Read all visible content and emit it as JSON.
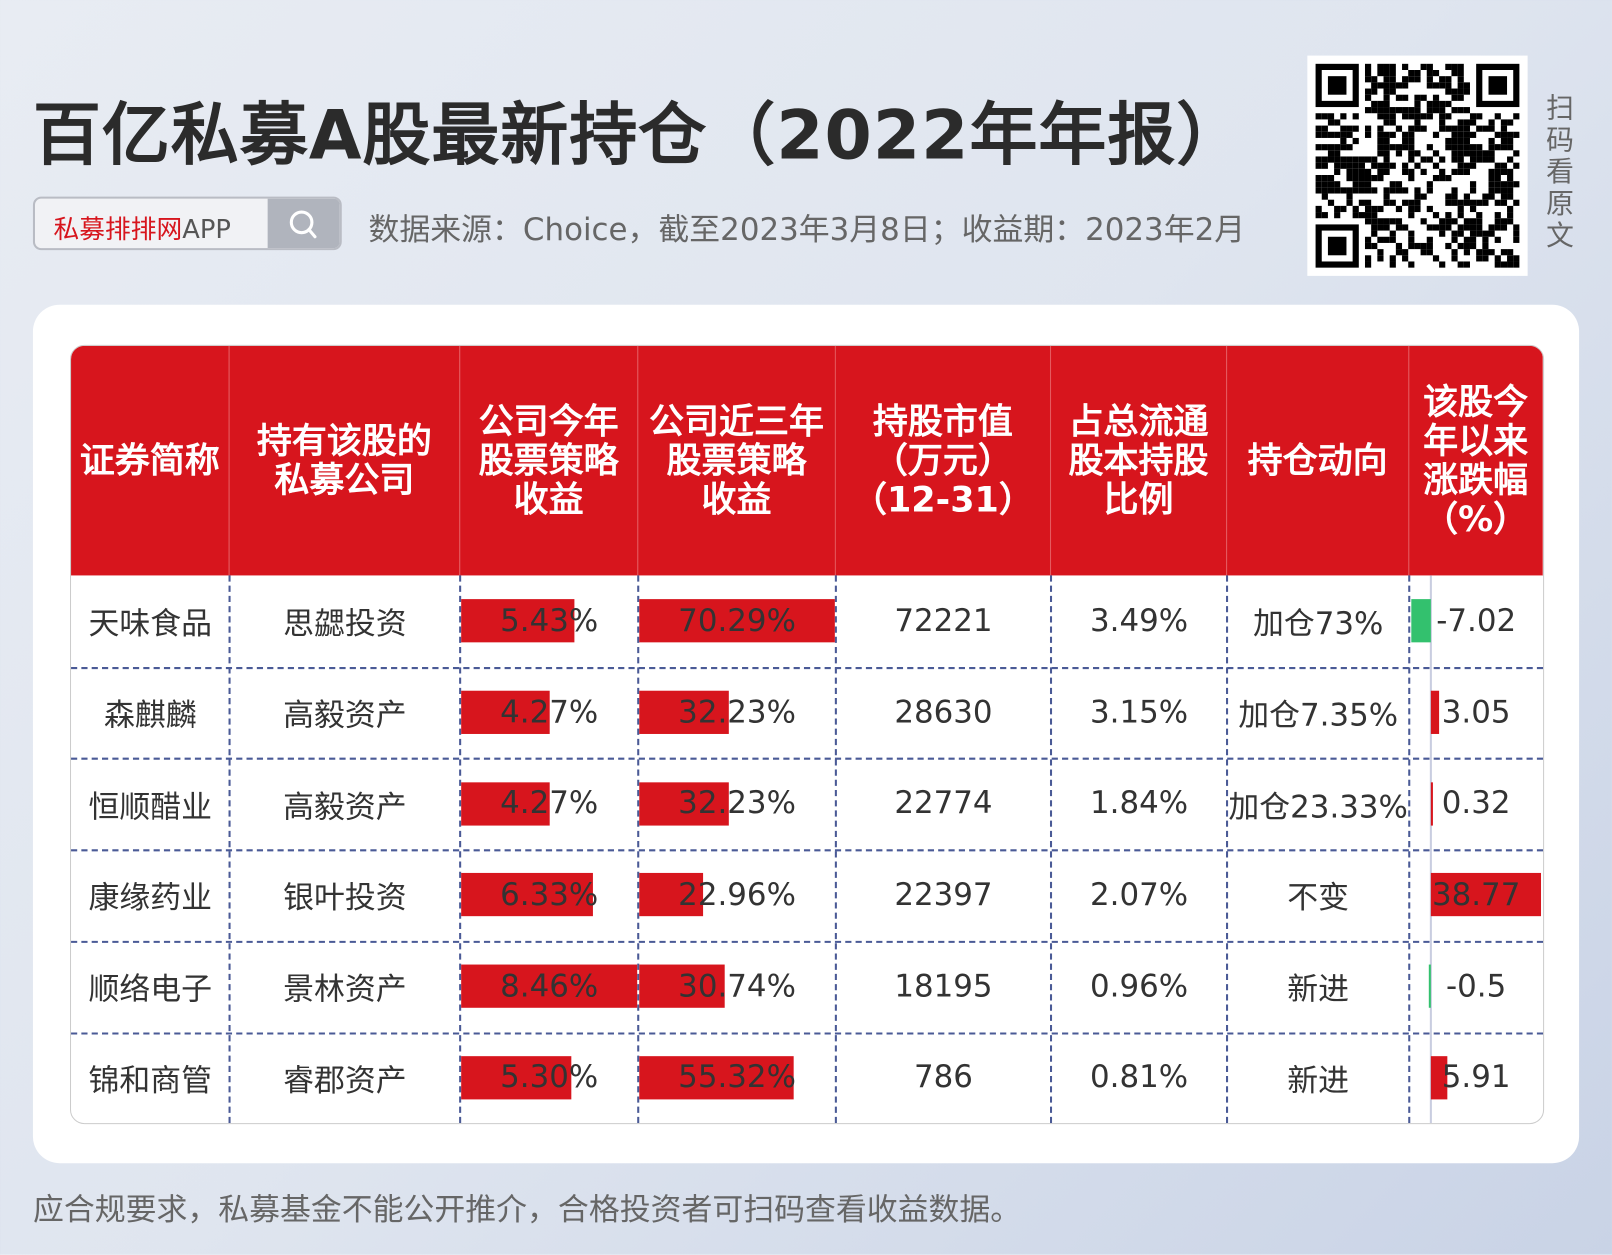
{
  "title": "百亿私募A股最新持仓（2022年年报）",
  "search": {
    "brand_red": "私募排排网",
    "brand_rest": "APP",
    "icon": "search-icon"
  },
  "source": "数据来源：Choice，截至2023年3月8日；收益期：2023年2月",
  "qr_label": "扫码看原文",
  "headers": [
    [
      "证券简称"
    ],
    [
      "持有该股的",
      "私募公司"
    ],
    [
      "公司今年",
      "股票策略",
      "收益"
    ],
    [
      "公司近三年",
      "股票策略",
      "收益"
    ],
    [
      "持股市值",
      "（万元）",
      "（12-31）"
    ],
    [
      "占总流通",
      "股本持股",
      "比例"
    ],
    [
      "持仓动向"
    ],
    [
      "该股今",
      "年以来",
      "涨跌幅",
      "（%）"
    ]
  ],
  "rows": [
    {
      "name": "天味食品",
      "company": "思勰投资",
      "ytd": "5.43%",
      "ytd_value": 5.43,
      "three_year": "70.29%",
      "three_year_value": 70.29,
      "market_value": "72221",
      "ratio": "3.49%",
      "action": "加仓73%",
      "change": "-7.02",
      "change_value": -7.02
    },
    {
      "name": "森麒麟",
      "company": "高毅资产",
      "ytd": "4.27%",
      "ytd_value": 4.27,
      "three_year": "32.23%",
      "three_year_value": 32.23,
      "market_value": "28630",
      "ratio": "3.15%",
      "action": "加仓7.35%",
      "change": "3.05",
      "change_value": 3.05
    },
    {
      "name": "恒顺醋业",
      "company": "高毅资产",
      "ytd": "4.27%",
      "ytd_value": 4.27,
      "three_year": "32.23%",
      "three_year_value": 32.23,
      "market_value": "22774",
      "ratio": "1.84%",
      "action": "加仓23.33%",
      "change": "0.32",
      "change_value": 0.32
    },
    {
      "name": "康缘药业",
      "company": "银叶投资",
      "ytd": "6.33%",
      "ytd_value": 6.33,
      "three_year": "22.96%",
      "three_year_value": 22.96,
      "market_value": "22397",
      "ratio": "2.07%",
      "action": "不变",
      "change": "38.77",
      "change_value": 38.77
    },
    {
      "name": "顺络电子",
      "company": "景林资产",
      "ytd": "8.46%",
      "ytd_value": 8.46,
      "three_year": "30.74%",
      "three_year_value": 30.74,
      "market_value": "18195",
      "ratio": "0.96%",
      "action": "新进",
      "change": "-0.5",
      "change_value": -0.5
    },
    {
      "name": "锦和商管",
      "company": "睿郡资产",
      "ytd": "5.30%",
      "ytd_value": 5.3,
      "three_year": "55.32%",
      "three_year_value": 55.32,
      "market_value": "786",
      "ratio": "0.81%",
      "action": "新进",
      "change": "5.91",
      "change_value": 5.91
    }
  ],
  "colors": {
    "header": "#d7151d",
    "bar_positive": "#d7151d",
    "bar_negative": "#33c16e"
  },
  "footer": "应合规要求，私募基金不能公开推介，合格投资者可扫码查看收益数据。"
}
